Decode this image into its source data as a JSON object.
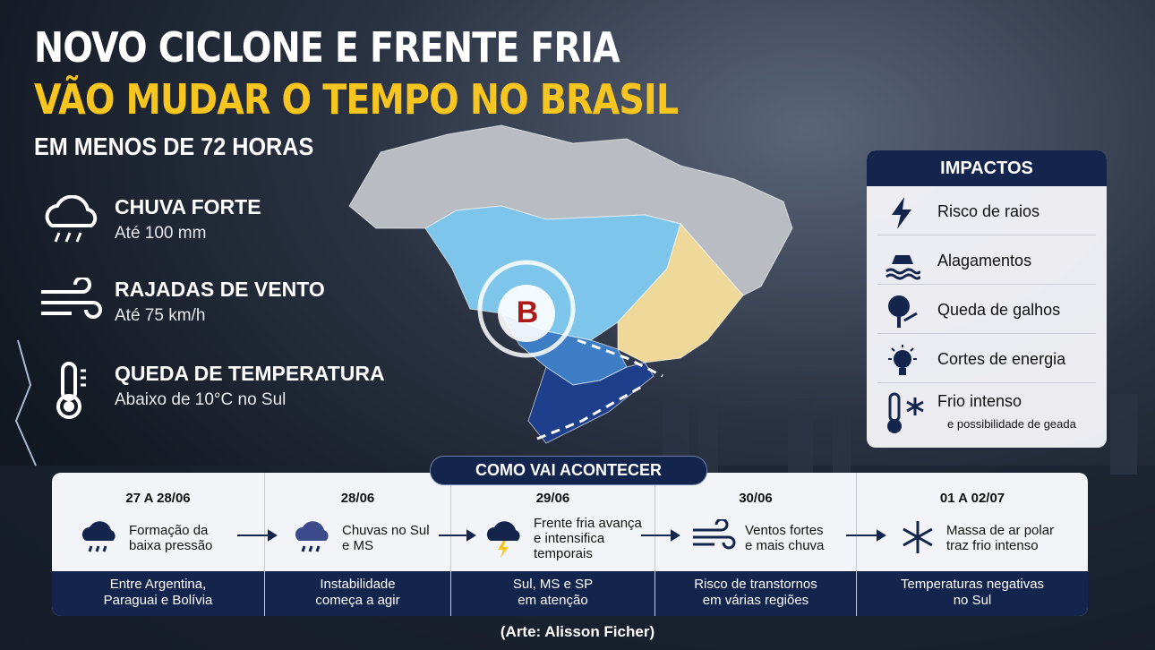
{
  "header": {
    "title_line1": "NOVO CICLONE E FRENTE FRIA",
    "title_line2": "VÃO MUDAR O TEMPO NO BRASIL",
    "subtitle": "EM MENOS DE 72 HORAS"
  },
  "hazards": [
    {
      "title": "CHUVA FORTE",
      "detail": "Até 100 mm"
    },
    {
      "title": "RAJADAS DE VENTO",
      "detail": "Até 75 km/h"
    },
    {
      "title": "QUEDA DE TEMPERATURA",
      "detail": "Abaixo de 10°C no Sul"
    }
  ],
  "map": {
    "cyclone_label": "B"
  },
  "impacts": {
    "title": "IMPACTOS",
    "items": [
      {
        "label": "Risco de raios"
      },
      {
        "label": "Alagamentos"
      },
      {
        "label": "Queda de galhos"
      },
      {
        "label": "Cortes de energia"
      },
      {
        "label": "Frio intenso",
        "note": "e possibilidade de geada"
      }
    ]
  },
  "timeline": {
    "title": "COMO VAI ACONTECER",
    "steps": [
      {
        "date": "27 A 28/06",
        "text": "Formação da\nbaixa pressão",
        "footer": "Entre Argentina,\nParaguai e Bolívia"
      },
      {
        "date": "28/06",
        "text": "Chuvas no Sul\ne MS",
        "footer": "Instabilidade\ncomeça a agir"
      },
      {
        "date": "29/06",
        "text": "Frente fria avança\ne intensifica\ntemporais",
        "footer": "Sul, MS e SP\nem atenção"
      },
      {
        "date": "30/06",
        "text": "Ventos fortes\ne mais chuva",
        "footer": "Risco de transtornos\nem várias regiões"
      },
      {
        "date": "01 A 02/07",
        "text": "Massa de ar polar\ntraz frio intenso",
        "footer": "Temperaturas negativas\nno Sul"
      }
    ]
  },
  "credit": "(Arte: Alisson Ficher)"
}
